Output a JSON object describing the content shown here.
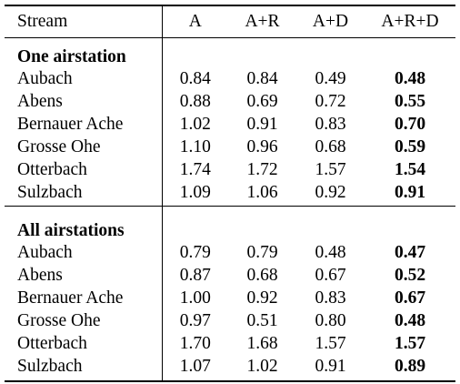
{
  "table": {
    "columns": [
      "Stream",
      "A",
      "A+R",
      "A+D",
      "A+R+D"
    ],
    "sections": [
      {
        "title": "One airstation",
        "rows": [
          {
            "stream": "Aubach",
            "values": [
              "0.84",
              "0.84",
              "0.49",
              "0.48"
            ]
          },
          {
            "stream": "Abens",
            "values": [
              "0.88",
              "0.69",
              "0.72",
              "0.55"
            ]
          },
          {
            "stream": "Bernauer Ache",
            "values": [
              "1.02",
              "0.91",
              "0.83",
              "0.70"
            ]
          },
          {
            "stream": "Grosse Ohe",
            "values": [
              "1.10",
              "0.96",
              "0.68",
              "0.59"
            ]
          },
          {
            "stream": "Otterbach",
            "values": [
              "1.74",
              "1.72",
              "1.57",
              "1.54"
            ]
          },
          {
            "stream": "Sulzbach",
            "values": [
              "1.09",
              "1.06",
              "0.92",
              "0.91"
            ]
          }
        ]
      },
      {
        "title": "All airstations",
        "rows": [
          {
            "stream": "Aubach",
            "values": [
              "0.79",
              "0.79",
              "0.48",
              "0.47"
            ]
          },
          {
            "stream": "Abens",
            "values": [
              "0.87",
              "0.68",
              "0.67",
              "0.52"
            ]
          },
          {
            "stream": "Bernauer Ache",
            "values": [
              "1.00",
              "0.92",
              "0.83",
              "0.67"
            ]
          },
          {
            "stream": "Grosse Ohe",
            "values": [
              "0.97",
              "0.51",
              "0.80",
              "0.48"
            ]
          },
          {
            "stream": "Otterbach",
            "values": [
              "1.70",
              "1.68",
              "1.57",
              "1.57"
            ]
          },
          {
            "stream": "Sulzbach",
            "values": [
              "1.07",
              "1.02",
              "0.91",
              "0.89"
            ]
          }
        ]
      }
    ]
  }
}
